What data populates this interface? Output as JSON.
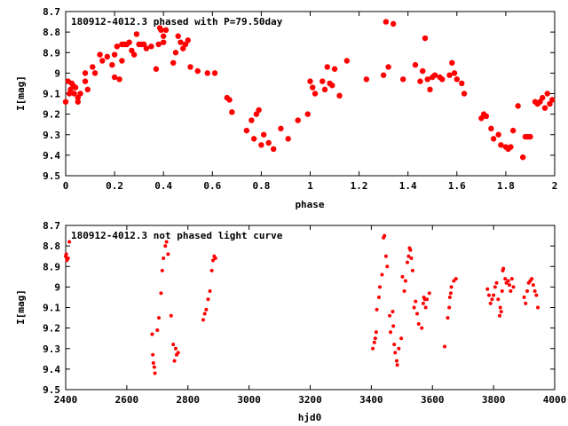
{
  "chart_data": [
    {
      "type": "scatter",
      "title": "180912-4012.3 phased with P=79.50day",
      "xlabel": "phase",
      "ylabel": "I[mag]",
      "xlim": [
        0,
        2
      ],
      "ylim": [
        9.5,
        8.7
      ],
      "y_inverted": true,
      "xticks": [
        0,
        0.2,
        0.4,
        0.6,
        0.8,
        1,
        1.2,
        1.4,
        1.6,
        1.8,
        2
      ],
      "xtick_labels": [
        "0",
        "0.2",
        "0.4",
        "0.6",
        "0.8",
        "1",
        "1.2",
        "1.4",
        "1.6",
        "1.8",
        "2"
      ],
      "yticks": [
        8.7,
        8.8,
        8.9,
        9,
        9.1,
        9.2,
        9.3,
        9.4,
        9.5
      ],
      "ytick_labels": [
        "8.7",
        "8.8",
        "8.9",
        "9",
        "9.1",
        "9.2",
        "9.3",
        "9.4",
        "9.5"
      ],
      "grid": false,
      "legend": "none",
      "marker_color": "#ff0000",
      "marker": "filled-circle",
      "series": [
        {
          "x": [
            0.0,
            0.01,
            0.015,
            0.02,
            0.025,
            0.03,
            0.035,
            0.04,
            0.05,
            0.05,
            0.06,
            0.08,
            0.08,
            0.09,
            0.11,
            0.12,
            0.14,
            0.15,
            0.17,
            0.19,
            0.2,
            0.2,
            0.21,
            0.22,
            0.23,
            0.23,
            0.24,
            0.25,
            0.26,
            0.27,
            0.28,
            0.29,
            0.3,
            0.31,
            0.32,
            0.33,
            0.35,
            0.37,
            0.38,
            0.385,
            0.39,
            0.4,
            0.4,
            0.41,
            0.44,
            0.45,
            0.46,
            0.47,
            0.48,
            0.49,
            0.5,
            0.51,
            0.54,
            0.58,
            0.61,
            0.66,
            0.67,
            0.68,
            0.74,
            0.76,
            0.77,
            0.78,
            0.79,
            0.8,
            0.81,
            0.83,
            0.85,
            0.88,
            0.91,
            0.95,
            0.99,
            1.0,
            1.01,
            1.02,
            1.05,
            1.06,
            1.07,
            1.08,
            1.09,
            1.1,
            1.12,
            1.15,
            1.23,
            1.3,
            1.31,
            1.32,
            1.34,
            1.38,
            1.43,
            1.45,
            1.46,
            1.47,
            1.48,
            1.49,
            1.5,
            1.51,
            1.53,
            1.54,
            1.57,
            1.58,
            1.59,
            1.6,
            1.62,
            1.63,
            1.7,
            1.71,
            1.72,
            1.74,
            1.75,
            1.77,
            1.78,
            1.8,
            1.81,
            1.82,
            1.83,
            1.85,
            1.87,
            1.88,
            1.89,
            1.9,
            1.92,
            1.93,
            1.94,
            1.95,
            1.96,
            1.97,
            1.98,
            1.99
          ],
          "y": [
            9.14,
            9.04,
            9.1,
            9.08,
            9.05,
            9.06,
            9.1,
            9.07,
            9.12,
            9.14,
            9.1,
            9.04,
            9.0,
            9.08,
            8.97,
            9.0,
            8.91,
            8.94,
            8.92,
            8.96,
            9.02,
            8.91,
            8.87,
            9.03,
            8.94,
            8.86,
            8.86,
            8.86,
            8.85,
            8.89,
            8.91,
            8.81,
            8.86,
            8.86,
            8.86,
            8.88,
            8.87,
            8.98,
            8.86,
            8.78,
            8.79,
            8.82,
            8.85,
            8.79,
            8.95,
            8.9,
            8.82,
            8.85,
            8.88,
            8.86,
            8.84,
            8.97,
            8.99,
            9.0,
            9.0,
            9.12,
            9.13,
            9.19,
            9.28,
            9.23,
            9.32,
            9.2,
            9.18,
            9.35,
            9.3,
            9.34,
            9.37,
            9.27,
            9.32,
            9.23,
            9.2,
            9.04,
            9.07,
            9.1,
            9.04,
            9.08,
            8.97,
            9.05,
            9.06,
            8.98,
            9.11,
            8.94,
            9.03,
            9.01,
            8.75,
            8.97,
            8.76,
            9.03,
            8.96,
            9.04,
            8.99,
            8.83,
            9.03,
            9.08,
            9.02,
            9.01,
            9.02,
            9.03,
            9.01,
            8.95,
            9.0,
            9.03,
            9.05,
            9.1,
            9.22,
            9.2,
            9.21,
            9.27,
            9.32,
            9.3,
            9.35,
            9.36,
            9.37,
            9.36,
            9.28,
            9.16,
            9.41,
            9.31,
            9.31,
            9.31,
            9.14,
            9.15,
            9.14,
            9.12,
            9.17,
            9.1,
            9.15,
            9.13
          ]
        }
      ]
    },
    {
      "type": "scatter",
      "title": "180912-4012.3 not phased light curve",
      "xlabel": "hjd0",
      "ylabel": "I[mag]",
      "xlim": [
        2400,
        4000
      ],
      "ylim": [
        9.5,
        8.7
      ],
      "y_inverted": true,
      "xticks": [
        2400,
        2600,
        2800,
        3000,
        3200,
        3400,
        3600,
        3800,
        4000
      ],
      "xtick_labels": [
        "2400",
        "2600",
        "2800",
        "3000",
        "3200",
        "3400",
        "3600",
        "3800",
        "4000"
      ],
      "yticks": [
        8.7,
        8.8,
        8.9,
        9,
        9.1,
        9.2,
        9.3,
        9.4,
        9.5
      ],
      "ytick_labels": [
        "8.7",
        "8.8",
        "8.9",
        "9",
        "9.1",
        "9.2",
        "9.3",
        "9.4",
        "9.5"
      ],
      "grid": false,
      "legend": "none",
      "marker_color": "#ff0000",
      "marker": "small-dot",
      "series": [
        {
          "x": [
            2400,
            2402,
            2404,
            2406,
            2408,
            2412,
            2683,
            2685,
            2687,
            2690,
            2692,
            2700,
            2705,
            2712,
            2716,
            2720,
            2726,
            2730,
            2735,
            2745,
            2752,
            2756,
            2760,
            2763,
            2768,
            2850,
            2855,
            2860,
            2866,
            2872,
            2878,
            2882,
            2886,
            2890,
            3405,
            3410,
            3413,
            3416,
            3418,
            3425,
            3428,
            3435,
            3440,
            3443,
            3448,
            3452,
            3460,
            3463,
            3470,
            3472,
            3475,
            3478,
            3483,
            3485,
            3490,
            3498,
            3502,
            3508,
            3512,
            3518,
            3522,
            3525,
            3528,
            3531,
            3535,
            3540,
            3545,
            3550,
            3555,
            3565,
            3570,
            3572,
            3575,
            3578,
            3582,
            3590,
            3640,
            3650,
            3655,
            3657,
            3660,
            3662,
            3670,
            3677,
            3780,
            3785,
            3790,
            3795,
            3800,
            3805,
            3810,
            3815,
            3820,
            3822,
            3825,
            3828,
            3830,
            3832,
            3838,
            3842,
            3848,
            3852,
            3856,
            3860,
            3865,
            3900,
            3905,
            3910,
            3915,
            3920,
            3925,
            3930,
            3935,
            3940,
            3945
          ],
          "y": [
            8.85,
            8.84,
            8.87,
            8.86,
            8.86,
            8.78,
            9.23,
            9.33,
            9.37,
            9.39,
            9.42,
            9.21,
            9.15,
            9.03,
            8.92,
            8.86,
            8.8,
            8.78,
            8.84,
            9.14,
            9.28,
            9.36,
            9.3,
            9.33,
            9.32,
            9.16,
            9.13,
            9.11,
            9.06,
            9.02,
            8.92,
            8.87,
            8.85,
            8.86,
            9.3,
            9.27,
            9.25,
            9.22,
            9.11,
            9.05,
            9.0,
            8.94,
            8.76,
            8.75,
            8.85,
            8.9,
            9.14,
            9.22,
            9.12,
            9.19,
            9.28,
            9.32,
            9.36,
            9.38,
            9.3,
            9.25,
            8.95,
            9.02,
            8.97,
            8.88,
            8.85,
            8.81,
            8.82,
            8.86,
            8.92,
            9.1,
            9.07,
            9.13,
            9.18,
            9.2,
            9.08,
            9.05,
            9.06,
            9.1,
            9.06,
            9.03,
            9.29,
            9.15,
            9.1,
            9.05,
            9.03,
            9.0,
            8.97,
            8.96,
            9.01,
            9.04,
            9.08,
            9.06,
            9.04,
            9.0,
            8.98,
            9.06,
            9.14,
            9.1,
            9.12,
            9.02,
            8.92,
            8.91,
            8.96,
            8.98,
            8.97,
            8.99,
            9.02,
            8.96,
            9.0,
            9.05,
            9.08,
            9.02,
            8.98,
            8.97,
            8.96,
            8.99,
            9.02,
            9.04,
            9.1
          ]
        }
      ]
    }
  ]
}
